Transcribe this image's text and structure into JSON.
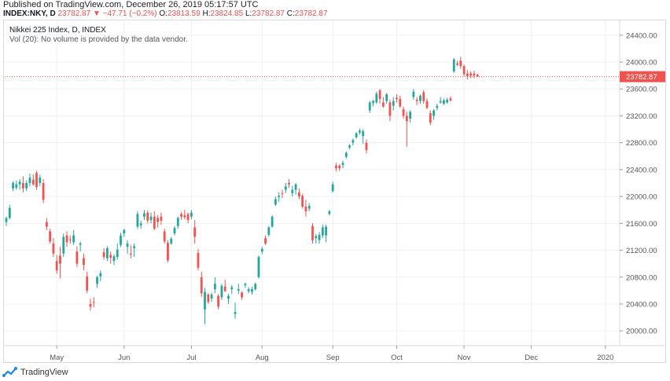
{
  "header": {
    "published": "Published on TradingView.com, December 26, 2019 05:17:57 UTC",
    "symbol": "INDEX:NKY, D",
    "last": "23782.87",
    "change": "▼ −47.71 (−0.2%)",
    "open_label": "O:",
    "open": "23813.59",
    "high_label": "H:",
    "high": "23824.85",
    "low_label": "L:",
    "low": "23782.87",
    "close_label": "C:",
    "close": "23782.87"
  },
  "legend": {
    "title": "Nikkei 225 Index, D, INDEX",
    "volume_note": "Vol (20): No volume is provided by the data vendor."
  },
  "footer": {
    "brand": "TradingView"
  },
  "colors": {
    "up": "#26a69a",
    "down": "#ef5350",
    "grid": "#eef0f3",
    "axis_text": "#555555",
    "price_line": "#ef5350"
  },
  "chart_data": {
    "type": "candlestick",
    "title": "Nikkei 225 Index, D, INDEX",
    "y_ticks": [
      20000,
      20400,
      20800,
      21200,
      21600,
      22000,
      22400,
      22800,
      23200,
      23600,
      24000,
      24400
    ],
    "y_tick_labels": [
      "20000.00",
      "20400.00",
      "20800.00",
      "21200.00",
      "21600.00",
      "22000.00",
      "22400.00",
      "22800.00",
      "23200.00",
      "23600.00",
      "24000.00",
      "24400.00"
    ],
    "ylim": [
      19780,
      24620
    ],
    "x_labels": [
      {
        "label": "May",
        "index": 15
      },
      {
        "label": "Jun",
        "index": 35
      },
      {
        "label": "Jul",
        "index": 55
      },
      {
        "label": "Aug",
        "index": 76
      },
      {
        "label": "Sep",
        "index": 97
      },
      {
        "label": "Oct",
        "index": 116
      },
      {
        "label": "Nov",
        "index": 136
      },
      {
        "label": "Dec",
        "index": 156
      },
      {
        "label": "2020",
        "index": 178
      }
    ],
    "last_price": 23782.87,
    "last_price_label": "23782.87",
    "candles": [
      [
        21620,
        21700,
        21560,
        21680
      ],
      [
        21680,
        21880,
        21660,
        21830
      ],
      [
        22120,
        22230,
        22080,
        22200
      ],
      [
        22130,
        22240,
        22100,
        22180
      ],
      [
        22180,
        22260,
        22100,
        22220
      ],
      [
        22200,
        22300,
        22060,
        22120
      ],
      [
        22120,
        22240,
        22080,
        22200
      ],
      [
        22200,
        22340,
        22150,
        22280
      ],
      [
        22250,
        22330,
        22160,
        22180
      ],
      [
        22350,
        22380,
        22100,
        22140
      ],
      [
        22200,
        22320,
        22150,
        22280
      ],
      [
        22200,
        22260,
        21900,
        21950
      ],
      [
        21620,
        21680,
        21500,
        21550
      ],
      [
        21480,
        21520,
        21300,
        21330
      ],
      [
        21300,
        21380,
        21100,
        21150
      ],
      [
        21040,
        21130,
        20850,
        20900
      ],
      [
        21120,
        21250,
        20780,
        21000
      ],
      [
        21150,
        21450,
        21100,
        21400
      ],
      [
        21420,
        21480,
        21250,
        21320
      ],
      [
        21360,
        21420,
        21300,
        21350
      ],
      [
        21320,
        21500,
        21280,
        21420
      ],
      [
        21180,
        21260,
        20950,
        21000
      ],
      [
        21280,
        21330,
        21180,
        21300
      ],
      [
        21080,
        21150,
        20900,
        20980
      ],
      [
        20810,
        20880,
        20560,
        20600
      ],
      [
        20400,
        20480,
        20300,
        20360
      ],
      [
        20430,
        20500,
        20350,
        20420
      ],
      [
        20700,
        20820,
        20640,
        20800
      ],
      [
        20810,
        20900,
        20740,
        20860
      ],
      [
        21170,
        21230,
        21060,
        21100
      ],
      [
        21080,
        21260,
        21040,
        21230
      ],
      [
        21130,
        21180,
        21000,
        21090
      ],
      [
        21040,
        21140,
        20980,
        21110
      ],
      [
        21100,
        21300,
        21060,
        21210
      ],
      [
        21280,
        21460,
        21250,
        21420
      ],
      [
        21450,
        21520,
        21400,
        21500
      ],
      [
        21250,
        21350,
        21150,
        21300
      ],
      [
        21150,
        21280,
        21080,
        21140
      ],
      [
        21230,
        21300,
        21100,
        21260
      ],
      [
        21550,
        21780,
        21520,
        21740
      ],
      [
        21570,
        21640,
        21520,
        21600
      ],
      [
        21700,
        21800,
        21650,
        21750
      ],
      [
        21760,
        21790,
        21600,
        21640
      ],
      [
        21650,
        21760,
        21600,
        21700
      ],
      [
        21700,
        21780,
        21500,
        21520
      ],
      [
        21680,
        21720,
        21540,
        21620
      ],
      [
        21700,
        21760,
        21580,
        21640
      ],
      [
        21480,
        21520,
        21300,
        21330
      ],
      [
        21310,
        21350,
        21020,
        21050
      ],
      [
        21300,
        21400,
        21280,
        21370
      ],
      [
        21450,
        21560,
        21420,
        21530
      ],
      [
        21560,
        21700,
        21520,
        21680
      ],
      [
        21740,
        21770,
        21650,
        21700
      ],
      [
        21720,
        21800,
        21660,
        21690
      ],
      [
        21740,
        21760,
        21600,
        21650
      ],
      [
        21700,
        21800,
        21660,
        21760
      ],
      [
        21540,
        21650,
        21300,
        21400
      ],
      [
        21160,
        21220,
        20900,
        20940
      ],
      [
        20800,
        20880,
        20500,
        20560
      ],
      [
        20320,
        20640,
        20100,
        20580
      ],
      [
        20540,
        20560,
        20400,
        20430
      ],
      [
        20480,
        20570,
        20430,
        20540
      ],
      [
        20620,
        20800,
        20560,
        20700
      ],
      [
        20520,
        20550,
        20320,
        20360
      ],
      [
        20500,
        20700,
        20460,
        20670
      ],
      [
        20660,
        20760,
        20580,
        20590
      ],
      [
        20480,
        20550,
        20400,
        20520
      ],
      [
        20620,
        20680,
        20550,
        20650
      ],
      [
        20250,
        20420,
        20180,
        20280
      ],
      [
        20600,
        20700,
        20550,
        20620
      ],
      [
        20570,
        20590,
        20460,
        20500
      ],
      [
        20680,
        20720,
        20640,
        20700
      ],
      [
        20590,
        20650,
        20560,
        20620
      ],
      [
        20580,
        20660,
        20540,
        20620
      ],
      [
        20620,
        20720,
        20600,
        20700
      ],
      [
        20800,
        21120,
        20780,
        21100
      ],
      [
        21180,
        21250,
        21140,
        21220
      ],
      [
        21380,
        21420,
        21280,
        21300
      ],
      [
        21430,
        21560,
        21400,
        21540
      ],
      [
        21550,
        21720,
        21540,
        21700
      ],
      [
        21880,
        22000,
        21860,
        21960
      ],
      [
        21990,
        22060,
        21920,
        22010
      ],
      [
        22050,
        22100,
        21980,
        22040
      ],
      [
        22100,
        22200,
        22050,
        22150
      ],
      [
        22200,
        22260,
        22130,
        22180
      ],
      [
        22050,
        22160,
        22000,
        22100
      ],
      [
        22100,
        22200,
        22030,
        22180
      ],
      [
        22060,
        22120,
        21960,
        22000
      ],
      [
        22010,
        22040,
        21820,
        21850
      ],
      [
        21850,
        21950,
        21700,
        21780
      ],
      [
        21820,
        21900,
        21780,
        21860
      ],
      [
        21560,
        21600,
        21300,
        21350
      ],
      [
        21380,
        21440,
        21300,
        21410
      ],
      [
        21350,
        21470,
        21300,
        21430
      ],
      [
        21420,
        21580,
        21380,
        21540
      ],
      [
        21420,
        21580,
        21320,
        21550
      ],
      [
        21740,
        21800,
        21720,
        21780
      ],
      [
        22080,
        22220,
        22060,
        22180
      ],
      [
        22460,
        22500,
        22370,
        22420
      ],
      [
        22460,
        22480,
        22380,
        22420
      ],
      [
        22470,
        22530,
        22420,
        22500
      ],
      [
        22590,
        22670,
        22560,
        22650
      ],
      [
        22730,
        22780,
        22700,
        22760
      ],
      [
        22800,
        22860,
        22760,
        22840
      ],
      [
        22880,
        22960,
        22860,
        22940
      ],
      [
        22950,
        23010,
        22920,
        22980
      ],
      [
        22900,
        23000,
        22780,
        22970
      ],
      [
        22800,
        22850,
        22640,
        22690
      ],
      [
        23280,
        23420,
        23240,
        23400
      ],
      [
        23390,
        23440,
        23340,
        23420
      ],
      [
        23400,
        23560,
        23380,
        23530
      ],
      [
        23580,
        23600,
        23380,
        23450
      ],
      [
        23400,
        23480,
        23320,
        23340
      ],
      [
        23420,
        23540,
        23380,
        23520
      ],
      [
        23400,
        23440,
        23120,
        23200
      ],
      [
        23350,
        23480,
        23280,
        23420
      ],
      [
        23470,
        23520,
        23400,
        23450
      ],
      [
        23450,
        23500,
        23320,
        23340
      ],
      [
        23300,
        23340,
        23160,
        23200
      ],
      [
        23200,
        23260,
        22740,
        23120
      ],
      [
        23160,
        23280,
        23100,
        23260
      ],
      [
        23480,
        23600,
        23440,
        23560
      ],
      [
        23440,
        23480,
        23360,
        23420
      ],
      [
        23420,
        23520,
        23380,
        23500
      ],
      [
        23550,
        23580,
        23380,
        23420
      ],
      [
        23420,
        23460,
        23300,
        23320
      ],
      [
        23240,
        23280,
        23060,
        23100
      ],
      [
        23200,
        23300,
        23140,
        23280
      ],
      [
        23320,
        23380,
        23280,
        23350
      ],
      [
        23400,
        23480,
        23380,
        23420
      ],
      [
        23380,
        23460,
        23360,
        23430
      ],
      [
        23400,
        23470,
        23380,
        23440
      ],
      [
        23460,
        23490,
        23410,
        23430
      ],
      [
        23860,
        24060,
        23840,
        24040
      ],
      [
        23980,
        24020,
        23940,
        23960
      ],
      [
        24020,
        24080,
        23900,
        23940
      ],
      [
        23940,
        23960,
        23790,
        23820
      ],
      [
        23830,
        23880,
        23740,
        23790
      ],
      [
        23830,
        23860,
        23760,
        23800
      ],
      [
        23830,
        23870,
        23760,
        23800
      ],
      [
        23813.59,
        23824.85,
        23782.87,
        23782.87
      ]
    ]
  }
}
